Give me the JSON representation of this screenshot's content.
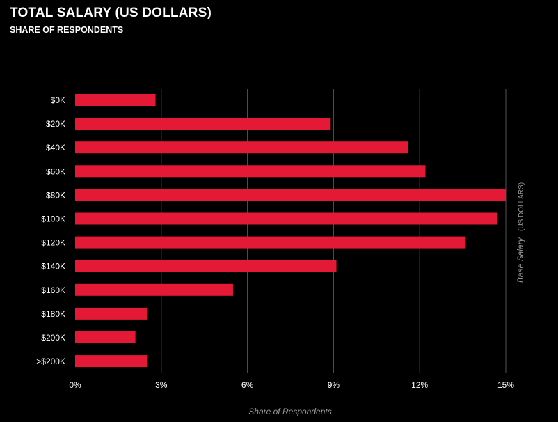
{
  "header": {
    "title": "TOTAL SALARY (US DOLLARS)",
    "subtitle": "SHARE OF RESPONDENTS"
  },
  "colors": {
    "bar": "#e31936",
    "background": "#000000",
    "grid": "#555555",
    "text": "#ffffff",
    "muted_text": "#9a9a9a"
  },
  "chart_data": {
    "type": "bar",
    "orientation": "horizontal",
    "title": "TOTAL SALARY (US DOLLARS)",
    "subtitle": "SHARE OF RESPONDENTS",
    "categories": [
      "$0K",
      "$20K",
      "$40K",
      "$60K",
      "$80K",
      "$100K",
      "$120K",
      "$140K",
      "$160K",
      "$180K",
      "$200K",
      ">$200K"
    ],
    "values": [
      2.8,
      8.9,
      11.6,
      12.2,
      15.0,
      14.7,
      13.6,
      9.1,
      5.5,
      2.5,
      2.1,
      2.5
    ],
    "xlabel": "Share of Respondents",
    "ylabel_main": "Base Salary",
    "ylabel_unit": "(US DOLLARS)",
    "xlim": [
      0,
      15
    ],
    "xticks": [
      0,
      3,
      6,
      9,
      12,
      15
    ],
    "xtick_labels": [
      "0%",
      "3%",
      "6%",
      "9%",
      "12%",
      "15%"
    ],
    "grid": true
  }
}
